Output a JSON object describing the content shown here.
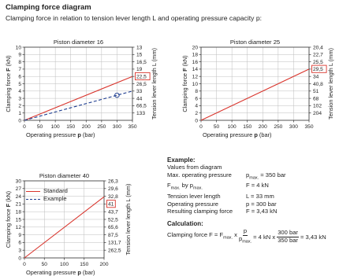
{
  "header": {
    "title": "Clamping force diagram",
    "subtitle": "Clamping force in relation to tension lever length L and operating pressure capacity p:"
  },
  "colors": {
    "standard": "#d9352d",
    "example": "#1d3c8f",
    "highlight": "#d9352d",
    "grid": "#bdbdbd",
    "axis": "#333333"
  },
  "chart_data": [
    {
      "type": "line",
      "title": "Piston diameter 16",
      "xlabel": "Operating pressure p (bar)",
      "ylabel": "Clamping force F (kN)",
      "y2label": "Tension lever length L (mm)",
      "xlim": [
        0,
        350
      ],
      "ylim": [
        0,
        10
      ],
      "x_ticks": [
        "0",
        "50",
        "100",
        "150",
        "200",
        "250",
        "300",
        "350"
      ],
      "y_ticks": [
        "0",
        "1",
        "2",
        "3",
        "4",
        "5",
        "6",
        "7",
        "8",
        "9",
        "10"
      ],
      "y2_ticks": [
        "133",
        "66,5",
        "44",
        "33",
        "26,5",
        "22,5",
        "19",
        "16,5",
        "15",
        "13"
      ],
      "y2_highlight": "22,5",
      "grid": true,
      "series": [
        {
          "name": "Standard",
          "style": "solid",
          "x": [
            0,
            350
          ],
          "y": [
            0,
            6.0
          ]
        },
        {
          "name": "Example",
          "style": "dashed",
          "x": [
            0,
            350
          ],
          "y": [
            0,
            4.0
          ]
        }
      ],
      "marker": {
        "x": 300,
        "y": 3.43
      }
    },
    {
      "type": "line",
      "title": "Piston diameter 25",
      "xlabel": "Operating pressure p (bar)",
      "ylabel": "Clamping force F (kN)",
      "y2label": "Tension lever length L (mm)",
      "xlim": [
        0,
        350
      ],
      "ylim": [
        0,
        20
      ],
      "x_ticks": [
        "0",
        "50",
        "100",
        "150",
        "200",
        "250",
        "300",
        "350"
      ],
      "y_ticks": [
        "0",
        "2",
        "4",
        "6",
        "8",
        "10",
        "12",
        "14",
        "16",
        "18",
        "20"
      ],
      "y2_ticks": [
        "204",
        "102",
        "68",
        "51",
        "40,8",
        "34",
        "29,5",
        "25,5",
        "22,7",
        "20,4"
      ],
      "y2_highlight": "29,5",
      "grid": true,
      "series": [
        {
          "name": "Standard",
          "style": "solid",
          "x": [
            0,
            350
          ],
          "y": [
            0,
            14
          ]
        }
      ]
    },
    {
      "type": "line",
      "title": "Piston diameter 40",
      "xlabel": "Operating pressure p (bar)",
      "ylabel": "Clamping force F (kN)",
      "y2label": "Tension lever length L (mm)",
      "xlim": [
        0,
        200
      ],
      "ylim": [
        0,
        30
      ],
      "x_ticks": [
        "0",
        "50",
        "100",
        "150",
        "200"
      ],
      "y_ticks": [
        "0",
        "3",
        "6",
        "9",
        "12",
        "15",
        "18",
        "21",
        "24",
        "27",
        "30"
      ],
      "y2_ticks": [
        "262,5",
        "131,7",
        "87,5",
        "65,6",
        "52,5",
        "43,7",
        "41",
        "32,8",
        "29,6",
        "26,3"
      ],
      "y2_highlight": "41",
      "grid": true,
      "series": [
        {
          "name": "Standard",
          "style": "solid",
          "x": [
            0,
            200
          ],
          "y": [
            0,
            23.8
          ]
        }
      ]
    }
  ],
  "legend": {
    "standard": "Standard",
    "example": "Example"
  },
  "example": {
    "heading": "Example:",
    "intro": "Values from diagram",
    "rows": [
      {
        "label": "Max. operating pressure",
        "value_html": "p<sub>max.</sub> = 350 bar"
      },
      {
        "label_html": "F<sub>max.</sub> by p<sub>max.</sub>",
        "value": "F = 4 kN"
      },
      {
        "label": "Tension lever length",
        "value": "L = 33 mm"
      },
      {
        "label": "Operating pressure",
        "value": "p = 300 bar"
      },
      {
        "label": "Resulting clamping force",
        "value": "F = 3,43 kN"
      }
    ],
    "calc_heading": "Calculation:",
    "calc_prefix_html": "Clamping force F = F<sub>max.</sub> x",
    "calc_frac1_num": "p",
    "calc_frac1_den_html": "p<sub>max.</sub>",
    "calc_mid": "= 4 kN x",
    "calc_frac2_num": "300 bar",
    "calc_frac2_den": "350 bar",
    "calc_result": "= 3,43 kN"
  }
}
